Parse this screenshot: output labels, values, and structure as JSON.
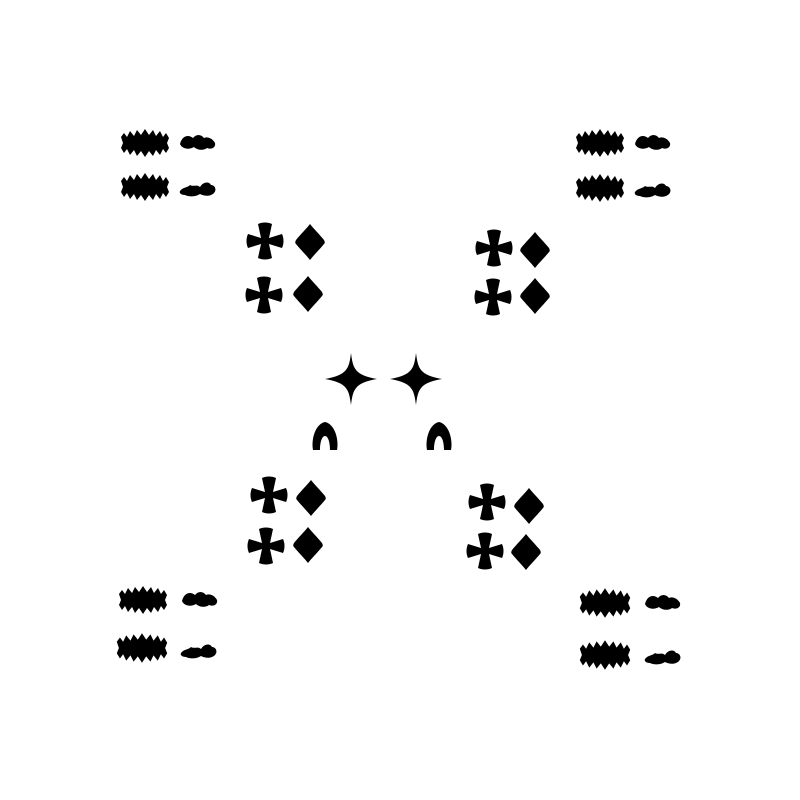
{
  "canvas": {
    "background": "#ffffff",
    "ink": "#000000"
  },
  "figure": {
    "arrangement": "X",
    "glyph_names": [
      "spiky-blob",
      "wavy-blob",
      "cross-flower",
      "diamond",
      "four-point-star",
      "arch"
    ],
    "outer_group_glyphs": [
      "spiky-blob",
      "wavy-blob"
    ],
    "middle_group_glyphs": [
      "cross-flower",
      "diamond"
    ],
    "center_group_glyphs": [
      "four-point-star",
      "arch"
    ]
  }
}
